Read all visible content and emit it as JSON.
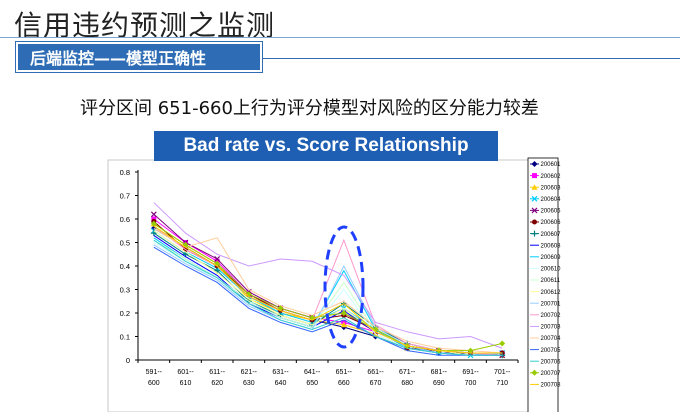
{
  "slide": {
    "title": "信用违约预测之监测",
    "section": "后端监控——模型正确性",
    "subtitle": "评分区间 651-660上行为评分模型对风险的区分能力较差"
  },
  "chart_data": {
    "type": "line",
    "title": "Bad rate vs. Score Relationship",
    "xlabel": "",
    "ylabel": "",
    "ylim": [
      0,
      0.8
    ],
    "yticks": [
      "0",
      "0.1",
      "0.2",
      "0.3",
      "0.4",
      "0.5",
      "0.6",
      "0.7",
      "0.8"
    ],
    "categories": [
      "591--600",
      "601--610",
      "611--620",
      "621--630",
      "631--640",
      "641--650",
      "651--660",
      "661--670",
      "671--680",
      "681--690",
      "691--700",
      "701--710"
    ],
    "x_top": [
      "591--",
      "601--",
      "611--",
      "621--",
      "631--",
      "641--",
      "651--",
      "661--",
      "671--",
      "681--",
      "691--",
      "701--"
    ],
    "x_bottom": [
      "600",
      "610",
      "620",
      "630",
      "640",
      "650",
      "660",
      "670",
      "680",
      "690",
      "700",
      "710"
    ],
    "grid": false,
    "legend": "right",
    "annotation": "dashed ellipse highlighting 651--660",
    "series": [
      {
        "name": "200601",
        "color": "#000080",
        "marker": "diamond",
        "values": [
          0.56,
          0.48,
          0.4,
          0.27,
          0.21,
          0.17,
          0.14,
          0.1,
          0.05,
          0.03,
          0.03,
          0.02
        ]
      },
      {
        "name": "200602",
        "color": "#ff00ff",
        "marker": "square",
        "values": [
          0.6,
          0.5,
          0.42,
          0.28,
          0.22,
          0.18,
          0.16,
          0.12,
          0.06,
          0.04,
          0.03,
          0.03
        ]
      },
      {
        "name": "200603",
        "color": "#ffcc00",
        "marker": "triangle",
        "values": [
          0.58,
          0.49,
          0.41,
          0.26,
          0.2,
          0.17,
          0.15,
          0.11,
          0.05,
          0.04,
          0.03,
          0.02
        ]
      },
      {
        "name": "200604",
        "color": "#00ccff",
        "marker": "x",
        "values": [
          0.55,
          0.46,
          0.39,
          0.27,
          0.2,
          0.16,
          0.22,
          0.13,
          0.06,
          0.03,
          0.02,
          0.03
        ]
      },
      {
        "name": "200605",
        "color": "#800080",
        "marker": "x",
        "values": [
          0.62,
          0.5,
          0.43,
          0.29,
          0.22,
          0.18,
          0.2,
          0.12,
          0.06,
          0.04,
          0.03,
          0.02
        ]
      },
      {
        "name": "200606",
        "color": "#800000",
        "marker": "circle",
        "values": [
          0.59,
          0.47,
          0.4,
          0.28,
          0.21,
          0.17,
          0.19,
          0.13,
          0.05,
          0.04,
          0.03,
          0.03
        ]
      },
      {
        "name": "200607",
        "color": "#008080",
        "marker": "plus",
        "values": [
          0.54,
          0.45,
          0.38,
          0.25,
          0.19,
          0.15,
          0.24,
          0.14,
          0.07,
          0.04,
          0.03,
          0.02
        ]
      },
      {
        "name": "200608",
        "color": "#0000ff",
        "marker": "none",
        "values": [
          0.53,
          0.44,
          0.36,
          0.24,
          0.18,
          0.14,
          0.21,
          0.12,
          0.06,
          0.03,
          0.02,
          0.02
        ]
      },
      {
        "name": "200609",
        "color": "#00ccff",
        "marker": "none",
        "values": [
          0.52,
          0.43,
          0.35,
          0.25,
          0.18,
          0.14,
          0.38,
          0.13,
          0.05,
          0.03,
          0.02,
          0.03
        ]
      },
      {
        "name": "200610",
        "color": "#ccffff",
        "marker": "none",
        "values": [
          0.5,
          0.42,
          0.34,
          0.24,
          0.17,
          0.13,
          0.3,
          0.11,
          0.05,
          0.03,
          0.02,
          0.02
        ]
      },
      {
        "name": "200611",
        "color": "#ccffcc",
        "marker": "none",
        "values": [
          0.51,
          0.43,
          0.35,
          0.25,
          0.18,
          0.14,
          0.33,
          0.12,
          0.06,
          0.04,
          0.03,
          0.02
        ]
      },
      {
        "name": "200612",
        "color": "#ffff99",
        "marker": "none",
        "values": [
          0.55,
          0.46,
          0.37,
          0.26,
          0.19,
          0.15,
          0.22,
          0.12,
          0.06,
          0.04,
          0.02,
          0.02
        ]
      },
      {
        "name": "200701",
        "color": "#99ccff",
        "marker": "none",
        "values": [
          0.49,
          0.41,
          0.34,
          0.23,
          0.17,
          0.13,
          0.4,
          0.14,
          0.06,
          0.03,
          0.02,
          0.03
        ]
      },
      {
        "name": "200702",
        "color": "#ff99cc",
        "marker": "none",
        "values": [
          0.57,
          0.47,
          0.4,
          0.27,
          0.21,
          0.17,
          0.51,
          0.15,
          0.07,
          0.04,
          0.03,
          0.02
        ]
      },
      {
        "name": "200703",
        "color": "#cc99ff",
        "marker": "none",
        "values": [
          0.67,
          0.54,
          0.45,
          0.4,
          0.43,
          0.42,
          0.36,
          0.16,
          0.12,
          0.09,
          0.1,
          0.05
        ]
      },
      {
        "name": "200704",
        "color": "#ffcc99",
        "marker": "none",
        "values": [
          0.56,
          0.48,
          0.52,
          0.3,
          0.23,
          0.19,
          0.25,
          0.14,
          0.08,
          0.05,
          0.04,
          0.03
        ]
      },
      {
        "name": "200705",
        "color": "#3366ff",
        "marker": "none",
        "values": [
          0.48,
          0.4,
          0.33,
          0.22,
          0.16,
          0.12,
          0.17,
          0.1,
          0.04,
          0.02,
          0.02,
          0.02
        ]
      },
      {
        "name": "200706",
        "color": "#33cccc",
        "marker": "none",
        "values": [
          0.51,
          0.42,
          0.35,
          0.24,
          0.17,
          0.13,
          0.18,
          0.1,
          0.05,
          0.03,
          0.02,
          0.02
        ]
      },
      {
        "name": "200707",
        "color": "#99cc00",
        "marker": "diamond",
        "values": [
          0.58,
          0.49,
          0.41,
          0.28,
          0.22,
          0.18,
          0.2,
          0.13,
          0.06,
          0.04,
          0.04,
          0.07
        ]
      },
      {
        "name": "200708",
        "color": "#ffcc00",
        "marker": "none",
        "values": [
          0.57,
          0.48,
          0.4,
          0.27,
          0.21,
          0.17,
          0.24,
          0.12,
          0.06,
          0.04,
          0.03,
          0.03
        ]
      }
    ]
  }
}
